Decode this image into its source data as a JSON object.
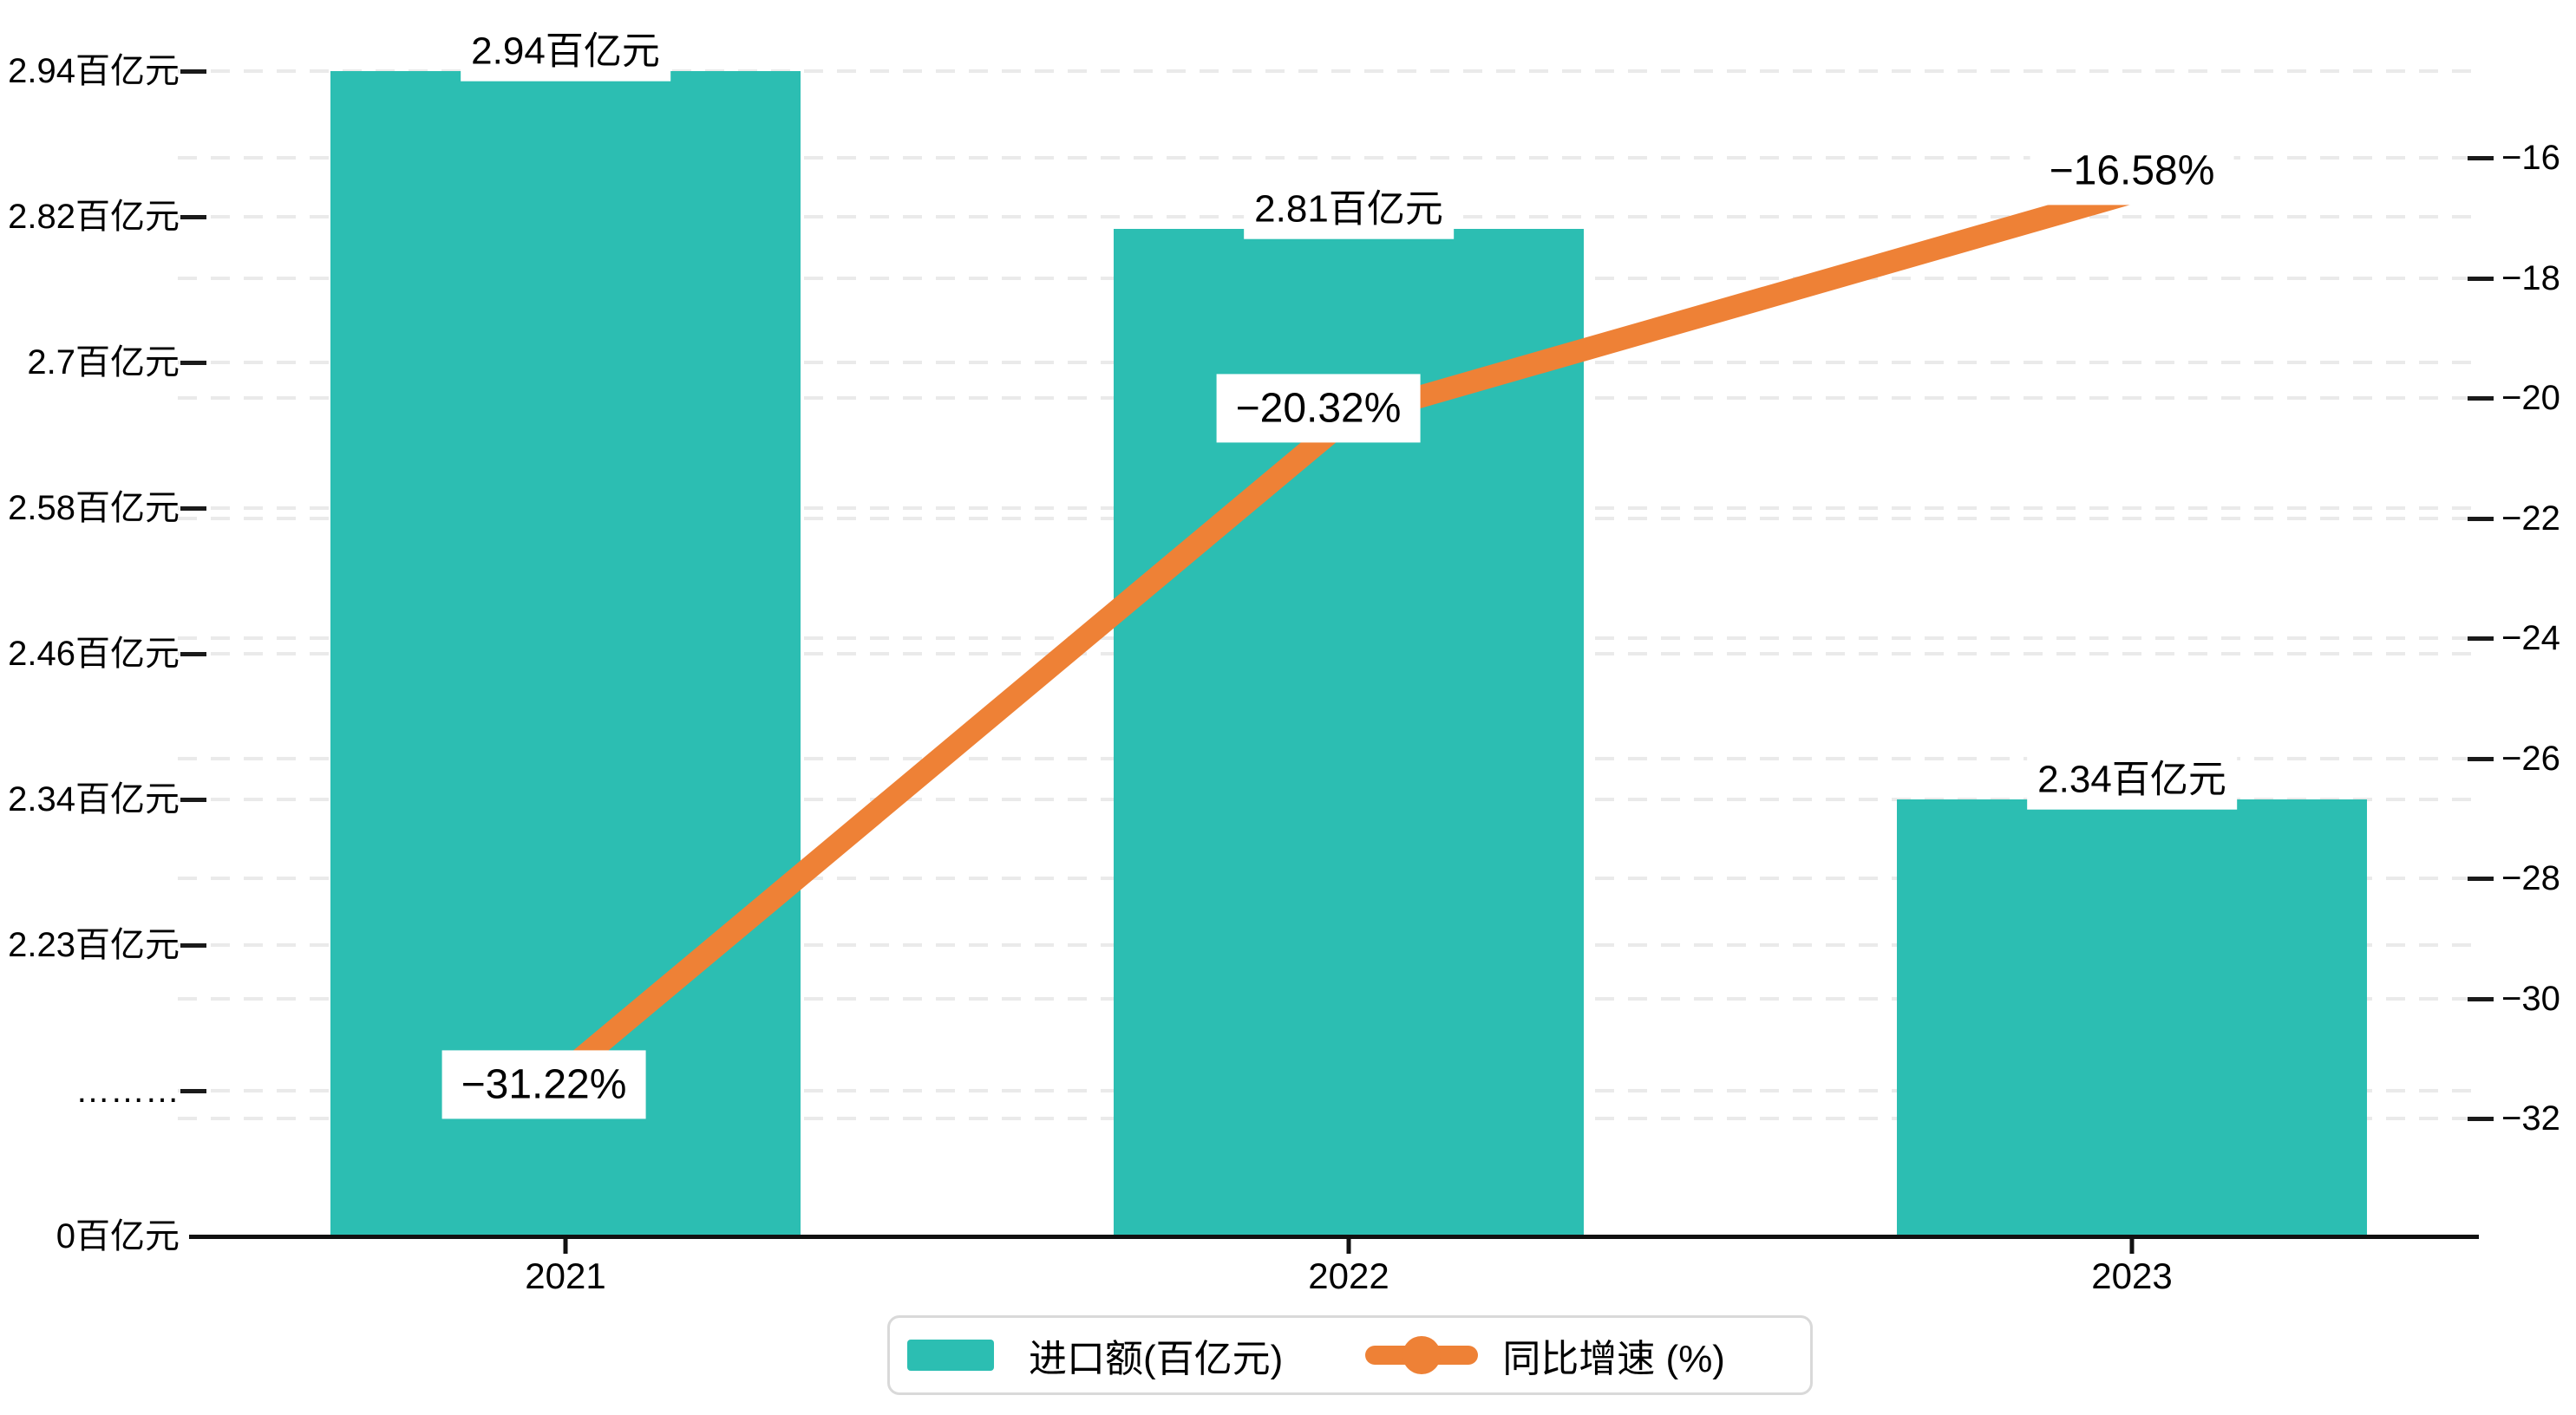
{
  "chart_data": {
    "type": "bar+line dual-axis combo",
    "categories": [
      "2021",
      "2022",
      "2023"
    ],
    "series": [
      {
        "name": "进口额(百亿元)",
        "type": "bar",
        "color": "#2CBEB2",
        "values": [
          2.94,
          2.81,
          2.34
        ],
        "labels": [
          "2.94百亿元",
          "2.81百亿元",
          "2.34百亿元"
        ]
      },
      {
        "name": "同比增速 (%)",
        "type": "line",
        "color": "#EE8136",
        "values": [
          -31.22,
          -20.32,
          -16.58
        ],
        "labels": [
          "−31.22%",
          "−20.32%",
          "−16.58%"
        ]
      }
    ],
    "x_axis": {
      "ticks": [
        "2021",
        "2022",
        "2023"
      ]
    },
    "left_axis": {
      "unit": "百亿元",
      "ticks": [
        "2.94百亿元",
        "2.82百亿元",
        "2.7百亿元",
        "2.58百亿元",
        "2.46百亿元",
        "2.34百亿元",
        "2.23百亿元",
        "………",
        "0百亿元"
      ],
      "break_symbol": "………"
    },
    "right_axis": {
      "unit": "%",
      "range": [
        -32,
        -16
      ],
      "ticks": [
        "−16",
        "−18",
        "−20",
        "−22",
        "−24",
        "−26",
        "−28",
        "−30",
        "−32"
      ]
    },
    "legend": {
      "items": [
        {
          "label": "进口额(百亿元)"
        },
        {
          "label": "同比增速 (%)"
        }
      ]
    },
    "grid": "light dashed horizontal gridlines for both axes",
    "colors": {
      "bar": "#2CBEB2",
      "line": "#EE8136",
      "gridline": "#eaeaea",
      "axis": "#111111",
      "annotation_bg": "#ffffff",
      "text": "#000000"
    }
  }
}
